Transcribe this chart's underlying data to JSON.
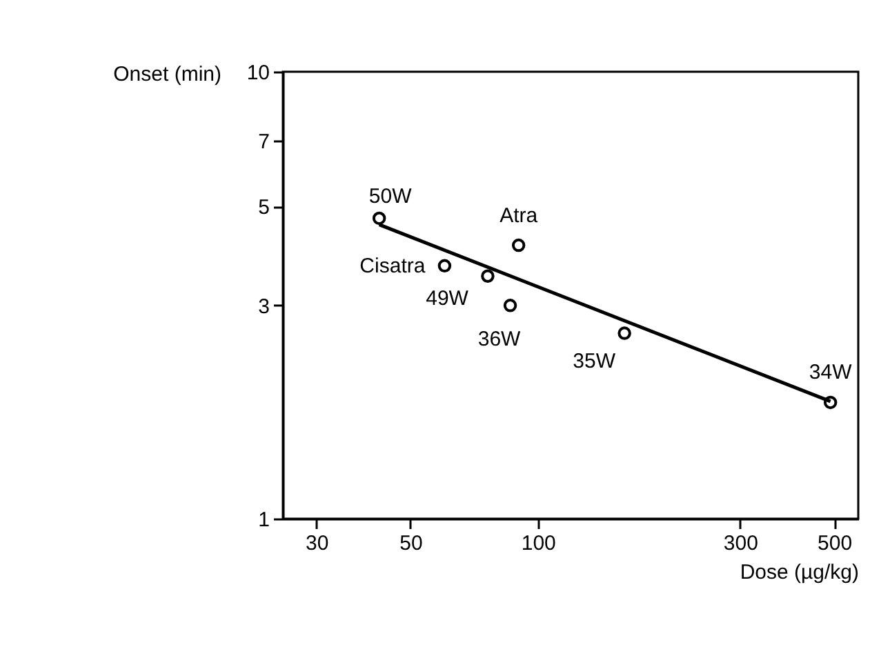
{
  "chart_data": {
    "type": "scatter",
    "xlabel": "Dose (µg/kg)",
    "ylabel": "Onset (min)",
    "log": "xy",
    "xlim": [
      25,
      570
    ],
    "ylim": [
      1,
      10
    ],
    "xticks": [
      30,
      50,
      100,
      300,
      500
    ],
    "yticks": [
      1,
      3,
      5,
      7,
      10
    ],
    "grid": false,
    "series": [
      {
        "color": "#000000",
        "marker": "circle",
        "x": [
          42.2,
          60.2,
          76.1,
          90,
          86,
          160,
          490
        ],
        "values": [
          4.7,
          3.68,
          3.49,
          4.09,
          3.0,
          2.6,
          1.82
        ]
      },
      {
        "type": "line",
        "color": "#000000",
        "marker": "none",
        "line_style": "solid",
        "x": [
          42.2,
          490
        ],
        "values": [
          4.55,
          1.83
        ]
      }
    ],
    "annotations": [
      {
        "text": "50W",
        "x": 42.2,
        "y": 4.7
      },
      {
        "text": "Cisatra",
        "x": 60.2,
        "y": 3.68
      },
      {
        "text": "49W",
        "x": 76.1,
        "y": 3.49
      },
      {
        "text": "Atra",
        "x": 90,
        "y": 4.09
      },
      {
        "text": "36W",
        "x": 86,
        "y": 3.0
      },
      {
        "text": "35W",
        "x": 160,
        "y": 2.6
      },
      {
        "text": "34W",
        "x": 490,
        "y": 1.82
      }
    ]
  }
}
